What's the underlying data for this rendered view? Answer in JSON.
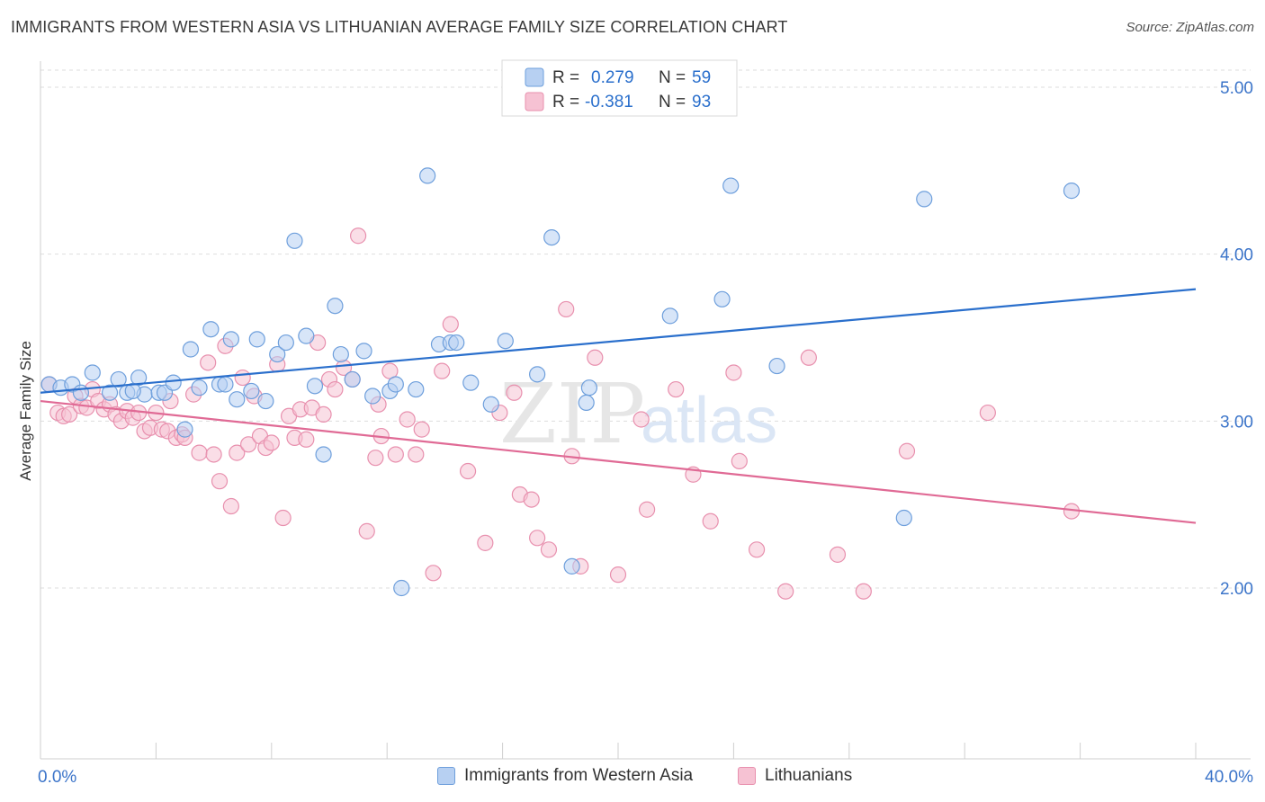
{
  "header": {
    "title": "IMMIGRANTS FROM WESTERN ASIA VS LITHUANIAN AVERAGE FAMILY SIZE CORRELATION CHART",
    "source": "Source: ZipAtlas.com"
  },
  "watermark": {
    "zip": "ZIP",
    "atlas": "atlas"
  },
  "colors": {
    "blue_fill": "#b7d0f2",
    "blue_stroke": "#6e9fdc",
    "blue_line": "#2a6fcc",
    "pink_fill": "#f6c2d3",
    "pink_stroke": "#e890ae",
    "pink_line": "#e06a95",
    "axis_text": "#3b74c9",
    "grid": "#dddddd"
  },
  "legend_top": {
    "rows": [
      {
        "r_label": "R =",
        "r_value": "0.279",
        "n_label": "N =",
        "n_value": "59"
      },
      {
        "r_label": "R =",
        "r_value": "-0.381",
        "n_label": "N =",
        "n_value": "93"
      }
    ]
  },
  "legend_bottom": {
    "items": [
      "Immigrants from Western Asia",
      "Lithuanians"
    ]
  },
  "chart_data": {
    "type": "scatter",
    "title": "IMMIGRANTS FROM WESTERN ASIA VS LITHUANIAN AVERAGE FAMILY SIZE CORRELATION CHART",
    "xlabel": "",
    "ylabel": "Average Family Size",
    "xlim": [
      0,
      40
    ],
    "ylim": [
      1.0,
      5.1
    ],
    "x_tick_labels": [
      "0.0%",
      "40.0%"
    ],
    "y_ticks": [
      2.0,
      3.0,
      4.0,
      5.0
    ],
    "y_tick_labels": [
      "2.00",
      "3.00",
      "4.00",
      "5.00"
    ],
    "grid": "horizontal dashed",
    "legend": "top-center",
    "series": [
      {
        "name": "Immigrants from Western Asia",
        "color": "#b7d0f2",
        "trend": {
          "x": [
            0,
            40
          ],
          "y": [
            3.17,
            3.79
          ]
        },
        "points": [
          [
            0.3,
            3.22
          ],
          [
            0.7,
            3.2
          ],
          [
            1.1,
            3.22
          ],
          [
            1.4,
            3.17
          ],
          [
            1.8,
            3.29
          ],
          [
            2.4,
            3.17
          ],
          [
            2.7,
            3.25
          ],
          [
            3.0,
            3.17
          ],
          [
            3.4,
            3.26
          ],
          [
            3.6,
            3.16
          ],
          [
            4.1,
            3.17
          ],
          [
            4.3,
            3.17
          ],
          [
            4.6,
            3.23
          ],
          [
            5.0,
            2.95
          ],
          [
            5.2,
            3.43
          ],
          [
            5.5,
            3.2
          ],
          [
            5.9,
            3.55
          ],
          [
            6.2,
            3.22
          ],
          [
            6.4,
            3.22
          ],
          [
            6.6,
            3.49
          ],
          [
            6.8,
            3.13
          ],
          [
            7.3,
            3.18
          ],
          [
            7.5,
            3.49
          ],
          [
            7.8,
            3.12
          ],
          [
            8.2,
            3.4
          ],
          [
            8.5,
            3.47
          ],
          [
            8.8,
            4.08
          ],
          [
            9.2,
            3.51
          ],
          [
            9.8,
            2.8
          ],
          [
            10.2,
            3.69
          ],
          [
            10.4,
            3.4
          ],
          [
            10.8,
            3.25
          ],
          [
            11.2,
            3.42
          ],
          [
            11.5,
            3.15
          ],
          [
            12.1,
            3.18
          ],
          [
            12.3,
            3.22
          ],
          [
            12.5,
            2.0
          ],
          [
            13.0,
            3.19
          ],
          [
            13.4,
            4.47
          ],
          [
            13.8,
            3.46
          ],
          [
            14.2,
            3.47
          ],
          [
            14.4,
            3.47
          ],
          [
            14.9,
            3.23
          ],
          [
            15.6,
            3.1
          ],
          [
            16.1,
            3.48
          ],
          [
            17.2,
            3.28
          ],
          [
            17.7,
            4.1
          ],
          [
            18.4,
            2.13
          ],
          [
            19.0,
            3.2
          ],
          [
            18.9,
            3.11
          ],
          [
            21.8,
            3.63
          ],
          [
            23.6,
            3.73
          ],
          [
            23.9,
            4.41
          ],
          [
            25.5,
            3.33
          ],
          [
            29.9,
            2.42
          ],
          [
            30.6,
            4.33
          ],
          [
            35.7,
            4.38
          ],
          [
            3.2,
            3.18
          ],
          [
            9.5,
            3.21
          ]
        ]
      },
      {
        "name": "Lithuanians",
        "color": "#f6c2d3",
        "trend": {
          "x": [
            0,
            40
          ],
          "y": [
            3.12,
            2.39
          ]
        },
        "points": [
          [
            0.3,
            3.22
          ],
          [
            0.6,
            3.05
          ],
          [
            0.8,
            3.03
          ],
          [
            1.0,
            3.04
          ],
          [
            1.2,
            3.15
          ],
          [
            1.4,
            3.09
          ],
          [
            1.6,
            3.08
          ],
          [
            1.8,
            3.19
          ],
          [
            2.0,
            3.12
          ],
          [
            2.2,
            3.07
          ],
          [
            2.4,
            3.1
          ],
          [
            2.6,
            3.04
          ],
          [
            2.8,
            3.0
          ],
          [
            3.0,
            3.06
          ],
          [
            3.2,
            3.02
          ],
          [
            3.4,
            3.05
          ],
          [
            3.6,
            2.94
          ],
          [
            3.8,
            2.96
          ],
          [
            4.0,
            3.05
          ],
          [
            4.2,
            2.95
          ],
          [
            4.4,
            2.94
          ],
          [
            4.5,
            3.12
          ],
          [
            4.7,
            2.9
          ],
          [
            4.9,
            2.92
          ],
          [
            5.0,
            2.9
          ],
          [
            5.3,
            3.16
          ],
          [
            5.5,
            2.81
          ],
          [
            5.8,
            3.35
          ],
          [
            6.0,
            2.8
          ],
          [
            6.2,
            2.64
          ],
          [
            6.4,
            3.45
          ],
          [
            6.6,
            2.49
          ],
          [
            6.8,
            2.81
          ],
          [
            7.0,
            3.26
          ],
          [
            7.2,
            2.86
          ],
          [
            7.4,
            3.15
          ],
          [
            7.6,
            2.91
          ],
          [
            7.8,
            2.84
          ],
          [
            8.0,
            2.87
          ],
          [
            8.2,
            3.34
          ],
          [
            8.4,
            2.42
          ],
          [
            8.6,
            3.03
          ],
          [
            8.8,
            2.9
          ],
          [
            9.0,
            3.07
          ],
          [
            9.2,
            2.89
          ],
          [
            9.4,
            3.08
          ],
          [
            9.6,
            3.47
          ],
          [
            9.8,
            3.04
          ],
          [
            10.0,
            3.25
          ],
          [
            10.2,
            3.19
          ],
          [
            10.5,
            3.32
          ],
          [
            10.8,
            3.25
          ],
          [
            11.0,
            4.11
          ],
          [
            11.3,
            2.34
          ],
          [
            11.6,
            2.78
          ],
          [
            11.8,
            2.91
          ],
          [
            12.1,
            3.3
          ],
          [
            12.3,
            2.8
          ],
          [
            12.7,
            3.01
          ],
          [
            13.0,
            2.8
          ],
          [
            13.2,
            2.95
          ],
          [
            13.6,
            2.09
          ],
          [
            13.9,
            3.3
          ],
          [
            14.2,
            3.58
          ],
          [
            14.8,
            2.7
          ],
          [
            15.4,
            2.27
          ],
          [
            15.9,
            3.05
          ],
          [
            16.4,
            3.17
          ],
          [
            16.6,
            2.56
          ],
          [
            17.0,
            2.53
          ],
          [
            17.2,
            2.3
          ],
          [
            17.6,
            2.23
          ],
          [
            18.2,
            3.67
          ],
          [
            18.4,
            2.79
          ],
          [
            18.7,
            2.13
          ],
          [
            19.2,
            3.38
          ],
          [
            20.0,
            2.08
          ],
          [
            20.8,
            3.01
          ],
          [
            21.0,
            2.47
          ],
          [
            22.0,
            3.19
          ],
          [
            22.6,
            2.68
          ],
          [
            23.2,
            2.4
          ],
          [
            24.0,
            3.29
          ],
          [
            24.2,
            2.76
          ],
          [
            24.8,
            2.23
          ],
          [
            25.8,
            1.98
          ],
          [
            26.6,
            3.38
          ],
          [
            27.6,
            2.2
          ],
          [
            28.5,
            1.98
          ],
          [
            30.0,
            2.82
          ],
          [
            32.8,
            3.05
          ],
          [
            35.7,
            2.46
          ],
          [
            11.7,
            3.1
          ]
        ]
      }
    ]
  }
}
